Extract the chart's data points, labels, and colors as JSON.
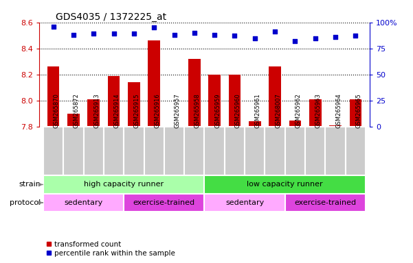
{
  "title": "GDS4035 / 1372225_at",
  "samples": [
    "GSM265870",
    "GSM265872",
    "GSM265913",
    "GSM265914",
    "GSM265915",
    "GSM265916",
    "GSM265957",
    "GSM265958",
    "GSM265959",
    "GSM265960",
    "GSM265961",
    "GSM268007",
    "GSM265962",
    "GSM265963",
    "GSM265964",
    "GSM265965"
  ],
  "transformed_count": [
    8.26,
    7.9,
    8.01,
    8.19,
    8.14,
    8.46,
    7.76,
    8.32,
    8.2,
    8.2,
    7.84,
    8.26,
    7.85,
    8.01,
    7.81,
    8.01
  ],
  "percentile_rank": [
    96,
    88,
    89,
    89,
    89,
    95,
    88,
    90,
    88,
    87,
    85,
    91,
    82,
    85,
    86,
    87
  ],
  "ylim_left": [
    7.8,
    8.6
  ],
  "ylim_right": [
    0,
    100
  ],
  "yticks_left": [
    7.8,
    8.0,
    8.2,
    8.4,
    8.6
  ],
  "yticks_right": [
    0,
    25,
    50,
    75,
    100
  ],
  "bar_color": "#cc0000",
  "dot_color": "#0000cc",
  "bar_width": 0.6,
  "strain_groups": [
    {
      "label": "high capacity runner",
      "start": 0,
      "end": 8,
      "color": "#aaffaa"
    },
    {
      "label": "low capacity runner",
      "start": 8,
      "end": 16,
      "color": "#44dd44"
    }
  ],
  "protocol_groups": [
    {
      "label": "sedentary",
      "start": 0,
      "end": 4,
      "color": "#ffaaff"
    },
    {
      "label": "exercise-trained",
      "start": 4,
      "end": 8,
      "color": "#dd44dd"
    },
    {
      "label": "sedentary",
      "start": 8,
      "end": 12,
      "color": "#ffaaff"
    },
    {
      "label": "exercise-trained",
      "start": 12,
      "end": 16,
      "color": "#dd44dd"
    }
  ],
  "strain_label": "strain",
  "protocol_label": "protocol",
  "legend_bar_label": "transformed count",
  "legend_dot_label": "percentile rank within the sample",
  "tick_label_color": "#cc0000",
  "right_tick_color": "#0000cc",
  "background_color": "#ffffff",
  "xlabels_bg_color": "#cccccc",
  "xlabels_border_color": "#ffffff"
}
